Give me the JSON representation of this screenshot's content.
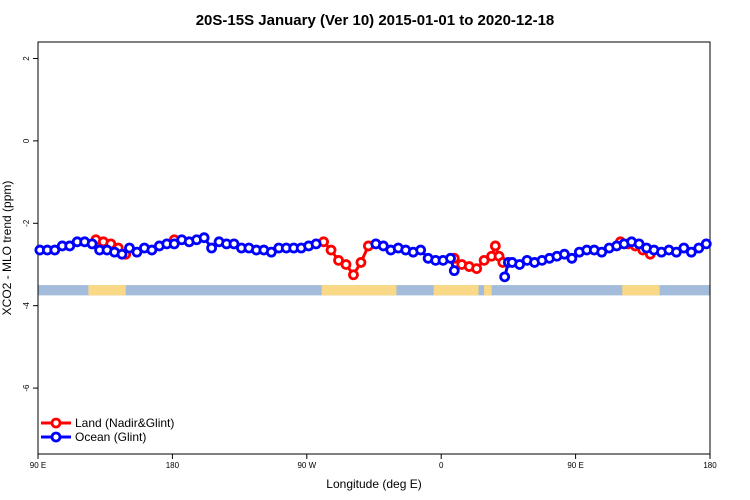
{
  "chart_data": {
    "type": "line",
    "title": "20S-15S January (Ver 10)   2015-01-01 to 2020-12-18",
    "xlabel": "Longitude (deg E)",
    "ylabel": "XCO2 - MLO trend (ppm)",
    "xlim": [
      90,
      450
    ],
    "ylim": [
      -7.6,
      2.4
    ],
    "x_ticks": [
      {
        "value": 90,
        "label": "90 E"
      },
      {
        "value": 162,
        "label": "180"
      },
      {
        "value": 234,
        "label": "90 W"
      },
      {
        "value": 306,
        "label": "0"
      },
      {
        "value": 378,
        "label": "90 E"
      },
      {
        "value": 450,
        "label": "180"
      }
    ],
    "y_ticks": [
      {
        "value": 2,
        "label": "2"
      },
      {
        "value": 0,
        "label": "0"
      },
      {
        "value": -2,
        "label": "-2"
      },
      {
        "value": -4,
        "label": "-4"
      },
      {
        "value": -6,
        "label": "-6"
      }
    ],
    "grid": false,
    "legend": {
      "position": "bottom-left"
    },
    "land_strip": {
      "y_range": [
        -3.75,
        -3.5
      ],
      "ocean_color": "#a4bcdc",
      "land_color": "#f9d985",
      "land_x": [
        [
          117,
          137
        ],
        [
          242,
          282
        ],
        [
          302,
          326
        ],
        [
          329,
          333
        ],
        [
          403,
          423
        ]
      ]
    },
    "series": [
      {
        "name": "Land (Nadir&Glint)",
        "color": "#ff0000",
        "x": [
          121,
          125,
          129,
          133,
          137,
          163,
          243,
          247,
          251,
          255,
          259,
          263,
          267,
          313,
          317,
          321,
          325,
          329,
          333,
          335,
          337,
          339,
          402,
          406,
          410,
          414,
          418
        ],
        "y": [
          -2.4,
          -2.45,
          -2.5,
          -2.6,
          -2.75,
          -2.4,
          -2.45,
          -2.65,
          -2.9,
          -3.0,
          -3.25,
          -2.95,
          -2.55,
          -2.85,
          -3.0,
          -3.05,
          -3.1,
          -2.9,
          -2.8,
          -2.55,
          -2.8,
          -2.95,
          -2.45,
          -2.5,
          -2.55,
          -2.65,
          -2.75
        ]
      },
      {
        "name": "Ocean (Glint)",
        "color": "#0000ff",
        "x": [
          91,
          95,
          99,
          103,
          107,
          111,
          115,
          119,
          123,
          127,
          131,
          135,
          139,
          143,
          147,
          151,
          155,
          159,
          163,
          167,
          171,
          175,
          179,
          183,
          187,
          191,
          195,
          199,
          203,
          207,
          211,
          215,
          219,
          223,
          227,
          231,
          235,
          239,
          271,
          275,
          279,
          283,
          287,
          291,
          295,
          299,
          303,
          307,
          311,
          313,
          340,
          342,
          344,
          348,
          352,
          356,
          360,
          364,
          368,
          372,
          376,
          380,
          384,
          388,
          392,
          396,
          400,
          404,
          408,
          412,
          416,
          420,
          424,
          428,
          432,
          436,
          440,
          444,
          448
        ],
        "y": [
          -2.65,
          -2.65,
          -2.65,
          -2.55,
          -2.55,
          -2.45,
          -2.45,
          -2.5,
          -2.65,
          -2.65,
          -2.7,
          -2.75,
          -2.6,
          -2.7,
          -2.6,
          -2.65,
          -2.55,
          -2.5,
          -2.5,
          -2.4,
          -2.45,
          -2.4,
          -2.35,
          -2.6,
          -2.45,
          -2.5,
          -2.5,
          -2.6,
          -2.6,
          -2.65,
          -2.65,
          -2.7,
          -2.6,
          -2.6,
          -2.6,
          -2.6,
          -2.55,
          -2.5,
          -2.5,
          -2.55,
          -2.65,
          -2.6,
          -2.65,
          -2.7,
          -2.65,
          -2.85,
          -2.9,
          -2.9,
          -2.85,
          -3.15,
          -3.3,
          -2.95,
          -2.95,
          -3.0,
          -2.9,
          -2.95,
          -2.9,
          -2.85,
          -2.8,
          -2.75,
          -2.85,
          -2.7,
          -2.65,
          -2.65,
          -2.7,
          -2.6,
          -2.55,
          -2.5,
          -2.45,
          -2.5,
          -2.6,
          -2.65,
          -2.7,
          -2.65,
          -2.7,
          -2.6,
          -2.7,
          -2.6,
          -2.5
        ]
      }
    ]
  }
}
